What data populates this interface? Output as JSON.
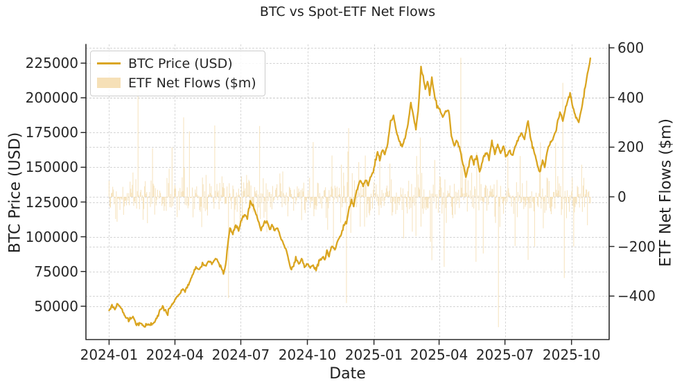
{
  "figure": {
    "title": "BTC vs Spot-ETF Net Flows",
    "background_color": "#ffffff",
    "text_color": "#262626",
    "grid_color": "#c3c3c3",
    "spine_color": "#2b2b2b",
    "line_color": "#DAA520",
    "bar_color": "#F5DEB3"
  },
  "chart_data": {
    "type": "line+bar dual-axis combo",
    "title": "BTC vs Spot-ETF Net Flows",
    "xlabel": "Date",
    "ylabel_left": "BTC Price (USD)",
    "ylabel_right": "ETF Net Flows ($m)",
    "grid": {
      "style": "dashed",
      "vertical": true,
      "horizontal_left_axis": true,
      "horizontal_right_axis": true
    },
    "x_tick_labels": [
      "2024-01",
      "2024-04",
      "2024-07",
      "2024-10",
      "2025-01",
      "2025-04",
      "2025-07",
      "2025-10"
    ],
    "x_tick_dates": [
      "2024-01-01",
      "2024-04-01",
      "2024-07-01",
      "2024-10-01",
      "2025-01-01",
      "2025-04-01",
      "2025-07-01",
      "2025-10-01"
    ],
    "y_left_tick_values": [
      225000,
      200000,
      175000,
      150000,
      125000,
      100000,
      75000,
      50000
    ],
    "y_left_tick_labels": [
      "225000",
      "200000",
      "175000",
      "150000",
      "125000",
      "100000",
      "75000",
      "50000"
    ],
    "y_right_tick_values": [
      600,
      400,
      200,
      0,
      -200,
      -400
    ],
    "y_right_tick_labels": [
      "600",
      "400",
      "200",
      "0",
      "−200",
      "−400"
    ],
    "x_range": [
      "2023-11-30",
      "2025-11-22"
    ],
    "y_left_range": [
      26000,
      238500
    ],
    "y_right_range": [
      -575,
      614
    ],
    "legend": {
      "position": "upper left",
      "entries": [
        {
          "label": "BTC Price (USD)",
          "swatch": "line",
          "color": "#DAA520"
        },
        {
          "label": "ETF Net Flows ($m)",
          "swatch": "patch",
          "color": "#F5DEB3"
        }
      ]
    },
    "series": [
      {
        "name": "BTC Price (USD)",
        "axis": "left",
        "type": "line",
        "color": "#DAA520",
        "line_width": 2.3,
        "daily_jitter_std_usd": 650,
        "jitter_seed": 904,
        "points": [
          [
            "2024-01-01",
            47000
          ],
          [
            "2024-01-05",
            50500
          ],
          [
            "2024-01-09",
            47500
          ],
          [
            "2024-01-13",
            52000
          ],
          [
            "2024-01-18",
            48500
          ],
          [
            "2024-01-23",
            42500
          ],
          [
            "2024-01-28",
            40000
          ],
          [
            "2024-02-03",
            42500
          ],
          [
            "2024-02-08",
            37500
          ],
          [
            "2024-02-14",
            38000
          ],
          [
            "2024-02-19",
            35500
          ],
          [
            "2024-02-23",
            37000
          ],
          [
            "2024-02-27",
            36500
          ],
          [
            "2024-03-03",
            37500
          ],
          [
            "2024-03-07",
            42000
          ],
          [
            "2024-03-12",
            47500
          ],
          [
            "2024-03-16",
            50000
          ],
          [
            "2024-03-21",
            44500
          ],
          [
            "2024-03-26",
            49500
          ],
          [
            "2024-03-30",
            52500
          ],
          [
            "2024-04-03",
            56000
          ],
          [
            "2024-04-07",
            58500
          ],
          [
            "2024-04-11",
            62500
          ],
          [
            "2024-04-15",
            61000
          ],
          [
            "2024-04-20",
            66000
          ],
          [
            "2024-04-25",
            72500
          ],
          [
            "2024-04-30",
            78500
          ],
          [
            "2024-05-04",
            76000
          ],
          [
            "2024-05-09",
            81000
          ],
          [
            "2024-05-13",
            78500
          ],
          [
            "2024-05-18",
            82500
          ],
          [
            "2024-05-22",
            80000
          ],
          [
            "2024-05-27",
            84500
          ],
          [
            "2024-05-31",
            82000
          ],
          [
            "2024-06-05",
            76000
          ],
          [
            "2024-06-07",
            73500
          ],
          [
            "2024-06-10",
            79500
          ],
          [
            "2024-06-13",
            94500
          ],
          [
            "2024-06-16",
            106000
          ],
          [
            "2024-06-20",
            102500
          ],
          [
            "2024-06-24",
            108500
          ],
          [
            "2024-06-28",
            105000
          ],
          [
            "2024-07-02",
            112500
          ],
          [
            "2024-07-06",
            116000
          ],
          [
            "2024-07-10",
            113500
          ],
          [
            "2024-07-14",
            126000
          ],
          [
            "2024-07-17",
            123500
          ],
          [
            "2024-07-21",
            117500
          ],
          [
            "2024-07-25",
            111000
          ],
          [
            "2024-07-29",
            105000
          ],
          [
            "2024-08-02",
            109500
          ],
          [
            "2024-08-06",
            111000
          ],
          [
            "2024-08-10",
            106000
          ],
          [
            "2024-08-13",
            108500
          ],
          [
            "2024-08-17",
            104500
          ],
          [
            "2024-08-20",
            107000
          ],
          [
            "2024-08-24",
            101000
          ],
          [
            "2024-08-27",
            97500
          ],
          [
            "2024-08-31",
            92500
          ],
          [
            "2024-09-03",
            88500
          ],
          [
            "2024-09-06",
            81000
          ],
          [
            "2024-09-09",
            77000
          ],
          [
            "2024-09-12",
            79500
          ],
          [
            "2024-09-15",
            84500
          ],
          [
            "2024-09-19",
            80000
          ],
          [
            "2024-09-23",
            84500
          ],
          [
            "2024-09-27",
            78500
          ],
          [
            "2024-10-01",
            81000
          ],
          [
            "2024-10-05",
            77000
          ],
          [
            "2024-10-09",
            79500
          ],
          [
            "2024-10-13",
            76000
          ],
          [
            "2024-10-17",
            82000
          ],
          [
            "2024-10-21",
            85000
          ],
          [
            "2024-10-25",
            83500
          ],
          [
            "2024-10-28",
            89500
          ],
          [
            "2024-10-31",
            87000
          ],
          [
            "2024-11-04",
            93500
          ],
          [
            "2024-11-08",
            91000
          ],
          [
            "2024-11-12",
            97500
          ],
          [
            "2024-11-16",
            101000
          ],
          [
            "2024-11-20",
            107500
          ],
          [
            "2024-11-24",
            111000
          ],
          [
            "2024-11-28",
            121000
          ],
          [
            "2024-12-01",
            126000
          ],
          [
            "2024-12-04",
            122500
          ],
          [
            "2024-12-07",
            131000
          ],
          [
            "2024-12-10",
            136000
          ],
          [
            "2024-12-13",
            141000
          ],
          [
            "2024-12-17",
            137000
          ],
          [
            "2024-12-21",
            140500
          ],
          [
            "2024-12-24",
            137500
          ],
          [
            "2024-12-28",
            143500
          ],
          [
            "2024-12-31",
            147000
          ],
          [
            "2025-01-06",
            161000
          ],
          [
            "2025-01-09",
            155000
          ],
          [
            "2025-01-13",
            163500
          ],
          [
            "2025-01-16",
            158500
          ],
          [
            "2025-01-20",
            167000
          ],
          [
            "2025-01-24",
            183500
          ],
          [
            "2025-01-28",
            187000
          ],
          [
            "2025-02-01",
            176000
          ],
          [
            "2025-02-05",
            168500
          ],
          [
            "2025-02-09",
            165000
          ],
          [
            "2025-02-13",
            172000
          ],
          [
            "2025-02-17",
            181000
          ],
          [
            "2025-02-21",
            196000
          ],
          [
            "2025-02-24",
            189000
          ],
          [
            "2025-02-28",
            178000
          ],
          [
            "2025-03-03",
            190000
          ],
          [
            "2025-03-07",
            221500
          ],
          [
            "2025-03-10",
            216000
          ],
          [
            "2025-03-13",
            206000
          ],
          [
            "2025-03-16",
            212500
          ],
          [
            "2025-03-19",
            202500
          ],
          [
            "2025-03-22",
            214500
          ],
          [
            "2025-03-26",
            201000
          ],
          [
            "2025-03-29",
            194500
          ],
          [
            "2025-04-02",
            191000
          ],
          [
            "2025-04-06",
            186000
          ],
          [
            "2025-04-10",
            189500
          ],
          [
            "2025-04-14",
            192000
          ],
          [
            "2025-04-18",
            172500
          ],
          [
            "2025-04-22",
            166000
          ],
          [
            "2025-04-26",
            169500
          ],
          [
            "2025-04-30",
            162500
          ],
          [
            "2025-05-04",
            152500
          ],
          [
            "2025-05-08",
            143500
          ],
          [
            "2025-05-12",
            151000
          ],
          [
            "2025-05-15",
            158500
          ],
          [
            "2025-05-19",
            152500
          ],
          [
            "2025-05-23",
            158500
          ],
          [
            "2025-05-27",
            147500
          ],
          [
            "2025-05-31",
            154500
          ],
          [
            "2025-06-05",
            161000
          ],
          [
            "2025-06-09",
            156000
          ],
          [
            "2025-06-13",
            168500
          ],
          [
            "2025-06-17",
            160000
          ],
          [
            "2025-06-21",
            167000
          ],
          [
            "2025-06-25",
            159500
          ],
          [
            "2025-06-29",
            165000
          ],
          [
            "2025-07-03",
            157000
          ],
          [
            "2025-07-07",
            162500
          ],
          [
            "2025-07-11",
            158500
          ],
          [
            "2025-07-15",
            165000
          ],
          [
            "2025-07-20",
            171000
          ],
          [
            "2025-07-24",
            174500
          ],
          [
            "2025-07-28",
            170000
          ],
          [
            "2025-08-02",
            183500
          ],
          [
            "2025-08-06",
            169500
          ],
          [
            "2025-08-10",
            161000
          ],
          [
            "2025-08-14",
            153500
          ],
          [
            "2025-08-18",
            146000
          ],
          [
            "2025-08-22",
            154500
          ],
          [
            "2025-08-25",
            150000
          ],
          [
            "2025-08-29",
            163000
          ],
          [
            "2025-09-02",
            167500
          ],
          [
            "2025-09-06",
            171000
          ],
          [
            "2025-09-10",
            177500
          ],
          [
            "2025-09-13",
            186000
          ],
          [
            "2025-09-16",
            189500
          ],
          [
            "2025-09-19",
            183500
          ],
          [
            "2025-09-23",
            192500
          ],
          [
            "2025-09-26",
            198500
          ],
          [
            "2025-09-29",
            203500
          ],
          [
            "2025-10-03",
            192500
          ],
          [
            "2025-10-07",
            186000
          ],
          [
            "2025-10-11",
            182500
          ],
          [
            "2025-10-15",
            192500
          ],
          [
            "2025-10-18",
            201000
          ],
          [
            "2025-10-22",
            214500
          ],
          [
            "2025-10-25",
            221000
          ],
          [
            "2025-10-27",
            228500
          ]
        ]
      },
      {
        "name": "ETF Net Flows ($m)",
        "axis": "right",
        "type": "bar",
        "unit": "$m",
        "color": "#F5DEB3",
        "bar_alpha": 0.85,
        "frequency": "daily",
        "start": "2024-01-01",
        "end": "2025-10-27",
        "typical_range": [
          -150,
          150
        ],
        "noise_mixture": [
          {
            "prob": 0.77,
            "std": 42
          },
          {
            "prob": 0.2,
            "std": 95
          },
          {
            "prob": 0.03,
            "std": 175
          }
        ],
        "clamp": 420,
        "noise_seed": 1337,
        "outliers": [
          [
            "2024-02-10",
            455
          ],
          [
            "2024-04-13",
            320
          ],
          [
            "2024-06-14",
            -408
          ],
          [
            "2024-11-24",
            -428
          ],
          [
            "2025-05-01",
            560
          ],
          [
            "2025-06-22",
            -525
          ],
          [
            "2025-08-02",
            -254
          ],
          [
            "2025-09-19",
            459
          ]
        ]
      }
    ]
  }
}
